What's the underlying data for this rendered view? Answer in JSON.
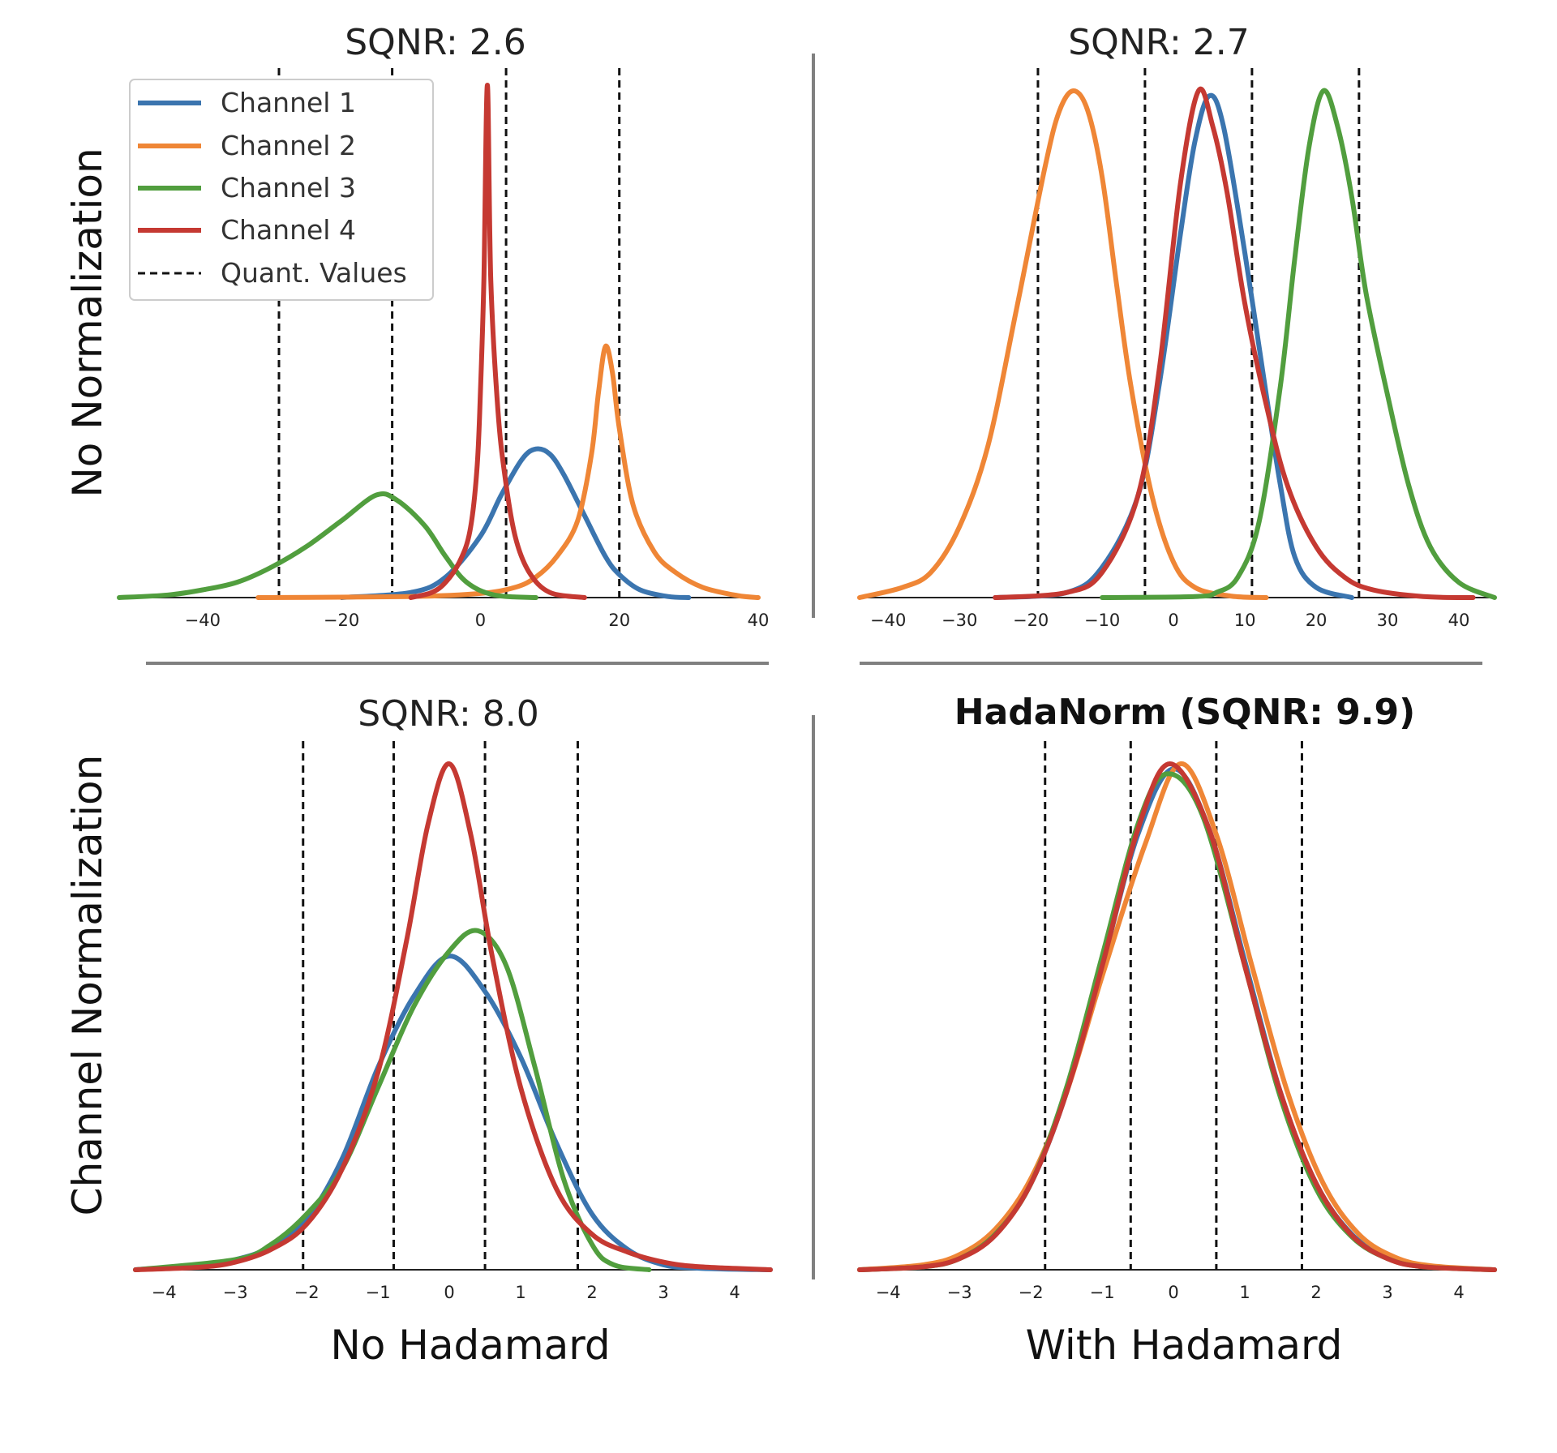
{
  "chart_data": [
    {
      "type": "line",
      "panel": "top-left",
      "title": "SQNR: 2.6",
      "ylabel": "No Normalization",
      "xlabel": "",
      "xlim": [
        -52,
        40
      ],
      "ylim": [
        0,
        1
      ],
      "xticks": [
        -40,
        -20,
        0,
        20,
        40
      ],
      "quant_values": [
        -29,
        -12.7,
        3.7,
        20
      ],
      "legend": {
        "position": "top-left",
        "entries": [
          "Channel 1",
          "Channel 2",
          "Channel 3",
          "Channel 4",
          "Quant. Values"
        ]
      },
      "series": [
        {
          "name": "Channel 1",
          "color": "#3b75af",
          "x": [
            -20,
            -10,
            -5,
            0,
            3,
            6,
            8,
            10,
            12,
            15,
            18,
            20,
            23,
            27,
            30
          ],
          "y": [
            0,
            0.01,
            0.04,
            0.12,
            0.2,
            0.27,
            0.29,
            0.28,
            0.24,
            0.16,
            0.08,
            0.045,
            0.015,
            0.002,
            0
          ]
        },
        {
          "name": "Channel 2",
          "color": "#ef8636",
          "x": [
            -32,
            -10,
            0,
            5,
            8,
            11,
            14,
            16,
            17,
            18,
            19,
            20,
            22,
            25,
            28,
            32,
            37,
            40
          ],
          "y": [
            0,
            0.002,
            0.008,
            0.02,
            0.04,
            0.08,
            0.15,
            0.28,
            0.4,
            0.49,
            0.44,
            0.33,
            0.18,
            0.09,
            0.05,
            0.02,
            0.004,
            0
          ]
        },
        {
          "name": "Channel 3",
          "color": "#519e3e",
          "x": [
            -52,
            -45,
            -40,
            -35,
            -30,
            -25,
            -20,
            -15,
            -12,
            -8,
            -5,
            -2,
            2,
            8
          ],
          "y": [
            0,
            0.005,
            0.015,
            0.03,
            0.06,
            0.1,
            0.15,
            0.2,
            0.19,
            0.14,
            0.08,
            0.03,
            0.005,
            0
          ]
        },
        {
          "name": "Channel 4",
          "color": "#c53932",
          "x": [
            -10,
            -7,
            -5,
            -3,
            -1.5,
            -0.5,
            0,
            0.5,
            1,
            1.5,
            2.5,
            3.5,
            5,
            7,
            10,
            15
          ],
          "y": [
            0,
            0.01,
            0.03,
            0.07,
            0.13,
            0.25,
            0.4,
            0.62,
            1.0,
            0.62,
            0.37,
            0.24,
            0.12,
            0.05,
            0.01,
            0
          ]
        }
      ]
    },
    {
      "type": "line",
      "panel": "top-right",
      "title": "SQNR: 2.7",
      "ylabel": "",
      "xlabel": "",
      "xlim": [
        -44,
        45
      ],
      "ylim": [
        0,
        1
      ],
      "xticks": [
        -40,
        -30,
        -20,
        -10,
        0,
        10,
        20,
        30,
        40
      ],
      "quant_values": [
        -19,
        -4,
        11,
        26
      ],
      "series": [
        {
          "name": "Channel 1",
          "color": "#3b75af",
          "x": [
            -25,
            -15,
            -10,
            -5,
            -2,
            1,
            3,
            5,
            7,
            10,
            13,
            15,
            17,
            20,
            25
          ],
          "y": [
            0,
            0.01,
            0.06,
            0.2,
            0.42,
            0.72,
            0.9,
            0.99,
            0.93,
            0.68,
            0.4,
            0.22,
            0.08,
            0.02,
            0
          ]
        },
        {
          "name": "Channel 2",
          "color": "#ef8636",
          "x": [
            -44,
            -38,
            -34,
            -30,
            -26,
            -22,
            -18,
            -16,
            -14,
            -12,
            -10,
            -8,
            -6,
            -3,
            0,
            3,
            8,
            13
          ],
          "y": [
            0,
            0.02,
            0.05,
            0.14,
            0.3,
            0.57,
            0.85,
            0.96,
            1.0,
            0.96,
            0.83,
            0.62,
            0.42,
            0.2,
            0.07,
            0.02,
            0.003,
            0
          ]
        },
        {
          "name": "Channel 3",
          "color": "#519e3e",
          "x": [
            -10,
            3,
            6,
            9,
            12,
            15,
            17,
            19,
            21,
            23,
            25,
            27,
            30,
            33,
            36,
            40,
            45
          ],
          "y": [
            0,
            0.002,
            0.01,
            0.04,
            0.15,
            0.42,
            0.67,
            0.89,
            1.0,
            0.93,
            0.79,
            0.6,
            0.4,
            0.22,
            0.1,
            0.03,
            0
          ]
        },
        {
          "name": "Channel 4",
          "color": "#c53932",
          "x": [
            -25,
            -15,
            -10,
            -5,
            -2,
            1,
            3.5,
            5.5,
            7.5,
            10,
            13,
            16,
            20,
            24,
            28,
            35,
            42
          ],
          "y": [
            0,
            0.01,
            0.05,
            0.2,
            0.45,
            0.82,
            1.0,
            0.93,
            0.8,
            0.58,
            0.38,
            0.22,
            0.1,
            0.04,
            0.015,
            0.002,
            0
          ]
        }
      ]
    },
    {
      "type": "line",
      "panel": "bottom-left",
      "title": "SQNR: 8.0",
      "ylabel": "Channel Normalization",
      "xlabel": "No Hadamard",
      "xlim": [
        -4.4,
        4.5
      ],
      "ylim": [
        0,
        1
      ],
      "xticks": [
        -4,
        -3,
        -2,
        -1,
        0,
        1,
        2,
        3,
        4
      ],
      "quant_values": [
        -2.05,
        -0.78,
        0.5,
        1.8
      ],
      "series": [
        {
          "name": "Channel 1",
          "color": "#3b75af",
          "x": [
            -4.4,
            -3.5,
            -3,
            -2.5,
            -2,
            -1.5,
            -1,
            -0.5,
            0,
            0.5,
            1,
            1.5,
            2,
            2.5,
            3,
            3.5,
            4.5
          ],
          "y": [
            0,
            0.01,
            0.02,
            0.045,
            0.1,
            0.22,
            0.4,
            0.54,
            0.62,
            0.55,
            0.42,
            0.25,
            0.11,
            0.04,
            0.01,
            0.003,
            0
          ]
        },
        {
          "name": "Channel 3",
          "color": "#519e3e",
          "x": [
            -4.4,
            -3,
            -2.5,
            -2,
            -1.5,
            -1,
            -0.5,
            0,
            0.4,
            0.8,
            1.2,
            1.6,
            2,
            2.3,
            2.8
          ],
          "y": [
            0,
            0.02,
            0.05,
            0.11,
            0.2,
            0.36,
            0.52,
            0.63,
            0.67,
            0.6,
            0.4,
            0.18,
            0.05,
            0.01,
            0
          ]
        },
        {
          "name": "Channel 4",
          "color": "#c53932",
          "x": [
            -4.4,
            -3.5,
            -3,
            -2.5,
            -2,
            -1.5,
            -1,
            -0.6,
            -0.3,
            0,
            0.3,
            0.6,
            1,
            1.5,
            2,
            2.5,
            3,
            3.5,
            4.5
          ],
          "y": [
            0,
            0.005,
            0.015,
            0.04,
            0.09,
            0.2,
            0.39,
            0.65,
            0.88,
            1.0,
            0.86,
            0.62,
            0.36,
            0.16,
            0.07,
            0.035,
            0.015,
            0.006,
            0
          ]
        }
      ]
    },
    {
      "type": "line",
      "panel": "bottom-right",
      "title": "HadaNorm (SQNR: 9.9)",
      "ylabel": "",
      "xlabel": "With Hadamard",
      "xlim": [
        -4.4,
        4.5
      ],
      "ylim": [
        0,
        1
      ],
      "xticks": [
        -4,
        -3,
        -2,
        -1,
        0,
        1,
        2,
        3,
        4
      ],
      "quant_values": [
        -1.8,
        -0.6,
        0.6,
        1.8
      ],
      "series": [
        {
          "name": "Channel 1",
          "color": "#3b75af",
          "x": [
            -4.4,
            -3.5,
            -3,
            -2.5,
            -2,
            -1.5,
            -1,
            -0.5,
            0,
            0.5,
            1,
            1.5,
            2,
            2.5,
            3,
            3.5,
            4.5
          ],
          "y": [
            0,
            0.007,
            0.024,
            0.07,
            0.17,
            0.35,
            0.6,
            0.86,
            0.99,
            0.87,
            0.61,
            0.35,
            0.17,
            0.07,
            0.024,
            0.007,
            0
          ]
        },
        {
          "name": "Channel 2",
          "color": "#ef8636",
          "x": [
            -4.4,
            -3.5,
            -3,
            -2.5,
            -2,
            -1.5,
            -1,
            -0.4,
            0.1,
            0.6,
            1.1,
            1.6,
            2.1,
            2.6,
            3.1,
            3.6,
            4.5
          ],
          "y": [
            0,
            0.01,
            0.03,
            0.08,
            0.18,
            0.35,
            0.58,
            0.84,
            1.0,
            0.86,
            0.6,
            0.35,
            0.17,
            0.07,
            0.025,
            0.008,
            0
          ]
        },
        {
          "name": "Channel 3",
          "color": "#519e3e",
          "x": [
            -4.4,
            -3.5,
            -3,
            -2.5,
            -2,
            -1.5,
            -1,
            -0.5,
            -0.1,
            0.4,
            1,
            1.5,
            2,
            2.5,
            3,
            3.5,
            4.5
          ],
          "y": [
            0,
            0.006,
            0.022,
            0.07,
            0.17,
            0.36,
            0.62,
            0.88,
            0.98,
            0.9,
            0.6,
            0.34,
            0.16,
            0.065,
            0.022,
            0.006,
            0
          ]
        },
        {
          "name": "Channel 4",
          "color": "#c53932",
          "x": [
            -4.4,
            -3.5,
            -3,
            -2.5,
            -2,
            -1.5,
            -1,
            -0.5,
            -0.05,
            0.5,
            1,
            1.5,
            2,
            2.5,
            3,
            3.5,
            4.5
          ],
          "y": [
            0,
            0.006,
            0.022,
            0.068,
            0.17,
            0.35,
            0.6,
            0.87,
            1.0,
            0.87,
            0.6,
            0.35,
            0.17,
            0.068,
            0.022,
            0.006,
            0
          ]
        }
      ]
    }
  ]
}
